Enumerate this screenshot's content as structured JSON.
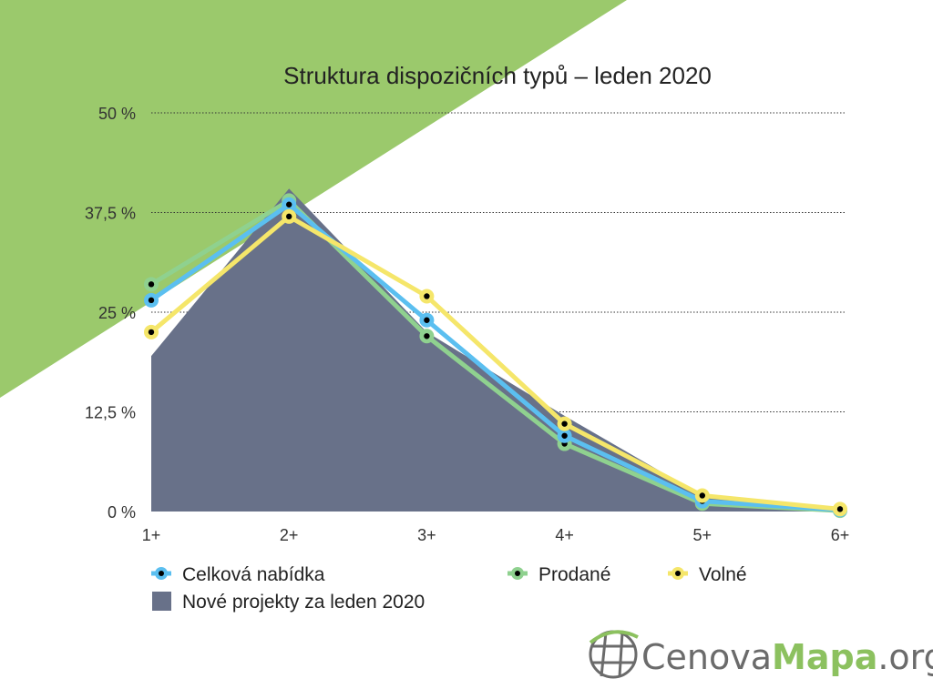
{
  "chart_data": {
    "type": "line",
    "title": "Struktura dispozičních typů – leden 2020",
    "categories": [
      "1+",
      "2+",
      "3+",
      "4+",
      "5+",
      "6+"
    ],
    "y_ticks": [
      "0 %",
      "12,5 %",
      "25 %",
      "37,5 %",
      "50 %"
    ],
    "ylim": [
      0,
      50
    ],
    "grid": "horizontal-dotted",
    "legend_position": "bottom",
    "area_series": {
      "name": "Nové projekty za leden 2020",
      "color": "#687189",
      "values": [
        19.5,
        40.5,
        22.5,
        12.0,
        2.0,
        0.5
      ]
    },
    "series": [
      {
        "name": "Celková nabídka",
        "color": "#5bbff0",
        "values": [
          26.5,
          38.5,
          24.0,
          9.5,
          1.3,
          0.2
        ]
      },
      {
        "name": "Prodané",
        "color": "#8fd18f",
        "values": [
          28.5,
          39.0,
          22.0,
          8.5,
          1.0,
          0.1
        ]
      },
      {
        "name": "Volné",
        "color": "#f5e66a",
        "values": [
          22.5,
          37.0,
          27.0,
          11.0,
          2.0,
          0.3
        ]
      }
    ]
  },
  "decor": {
    "triangle_color": "#9bc96c"
  },
  "logo": {
    "text_part1": "Cenova",
    "text_part2": "Mapa",
    "text_part3": ".org",
    "color_grey": "#6b6b6b",
    "color_green": "#8cc15f"
  }
}
